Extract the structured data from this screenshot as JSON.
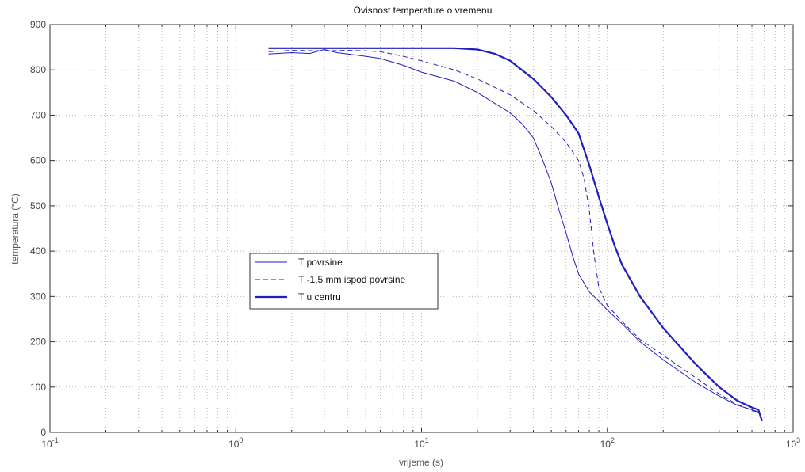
{
  "chart_data": {
    "type": "line",
    "title": "Ovisnost temperature o vremenu",
    "xlabel": "vrijeme (s)",
    "ylabel": "temperatura (°C)",
    "xscale": "log",
    "xlim": [
      0.1,
      1000
    ],
    "ylim": [
      0,
      900
    ],
    "grid": true,
    "legend_position": "center-left",
    "x_tick_labels": [
      {
        "base": "10",
        "exp": "-1"
      },
      {
        "base": "10",
        "exp": "0"
      },
      {
        "base": "10",
        "exp": "1"
      },
      {
        "base": "10",
        "exp": "2"
      },
      {
        "base": "10",
        "exp": "3"
      }
    ],
    "y_ticks": [
      0,
      100,
      200,
      300,
      400,
      500,
      600,
      700,
      800,
      900
    ],
    "series": [
      {
        "name": "T povrsine",
        "color": "#1f1fc0",
        "style": "solid-thin",
        "points": [
          [
            1.5,
            835
          ],
          [
            2,
            838
          ],
          [
            2.5,
            836
          ],
          [
            3,
            845
          ],
          [
            3.5,
            838
          ],
          [
            4,
            835
          ],
          [
            5,
            830
          ],
          [
            6,
            825
          ],
          [
            8,
            810
          ],
          [
            10,
            795
          ],
          [
            15,
            775
          ],
          [
            20,
            750
          ],
          [
            25,
            725
          ],
          [
            30,
            705
          ],
          [
            35,
            680
          ],
          [
            40,
            650
          ],
          [
            45,
            600
          ],
          [
            50,
            550
          ],
          [
            55,
            490
          ],
          [
            60,
            440
          ],
          [
            65,
            390
          ],
          [
            70,
            350
          ],
          [
            80,
            310
          ],
          [
            90,
            290
          ],
          [
            100,
            270
          ],
          [
            120,
            240
          ],
          [
            150,
            200
          ],
          [
            200,
            160
          ],
          [
            300,
            110
          ],
          [
            400,
            80
          ],
          [
            500,
            60
          ],
          [
            600,
            50
          ],
          [
            650,
            45
          ],
          [
            680,
            30
          ]
        ]
      },
      {
        "name": "T -1,5 mm ispod povrsine",
        "color": "#1f1fc0",
        "style": "dashed",
        "points": [
          [
            1.5,
            840
          ],
          [
            2,
            843
          ],
          [
            3,
            842
          ],
          [
            4,
            843
          ],
          [
            5,
            842
          ],
          [
            6,
            840
          ],
          [
            8,
            830
          ],
          [
            10,
            820
          ],
          [
            15,
            800
          ],
          [
            20,
            780
          ],
          [
            30,
            745
          ],
          [
            40,
            710
          ],
          [
            50,
            675
          ],
          [
            60,
            640
          ],
          [
            70,
            600
          ],
          [
            75,
            560
          ],
          [
            80,
            490
          ],
          [
            85,
            390
          ],
          [
            90,
            320
          ],
          [
            100,
            280
          ],
          [
            120,
            245
          ],
          [
            150,
            205
          ],
          [
            200,
            170
          ],
          [
            300,
            120
          ],
          [
            400,
            85
          ],
          [
            500,
            62
          ],
          [
            600,
            48
          ],
          [
            650,
            45
          ],
          [
            680,
            30
          ]
        ]
      },
      {
        "name": "T u centru",
        "color": "#1f1fc0",
        "style": "solid-thick",
        "points": [
          [
            1.5,
            848
          ],
          [
            2,
            848
          ],
          [
            3,
            848
          ],
          [
            5,
            848
          ],
          [
            8,
            848
          ],
          [
            10,
            848
          ],
          [
            15,
            848
          ],
          [
            20,
            845
          ],
          [
            25,
            835
          ],
          [
            30,
            820
          ],
          [
            40,
            780
          ],
          [
            50,
            740
          ],
          [
            60,
            700
          ],
          [
            70,
            660
          ],
          [
            80,
            590
          ],
          [
            90,
            520
          ],
          [
            100,
            460
          ],
          [
            110,
            410
          ],
          [
            120,
            370
          ],
          [
            150,
            300
          ],
          [
            200,
            230
          ],
          [
            300,
            150
          ],
          [
            400,
            100
          ],
          [
            500,
            70
          ],
          [
            600,
            55
          ],
          [
            650,
            50
          ],
          [
            680,
            25
          ]
        ]
      }
    ]
  }
}
